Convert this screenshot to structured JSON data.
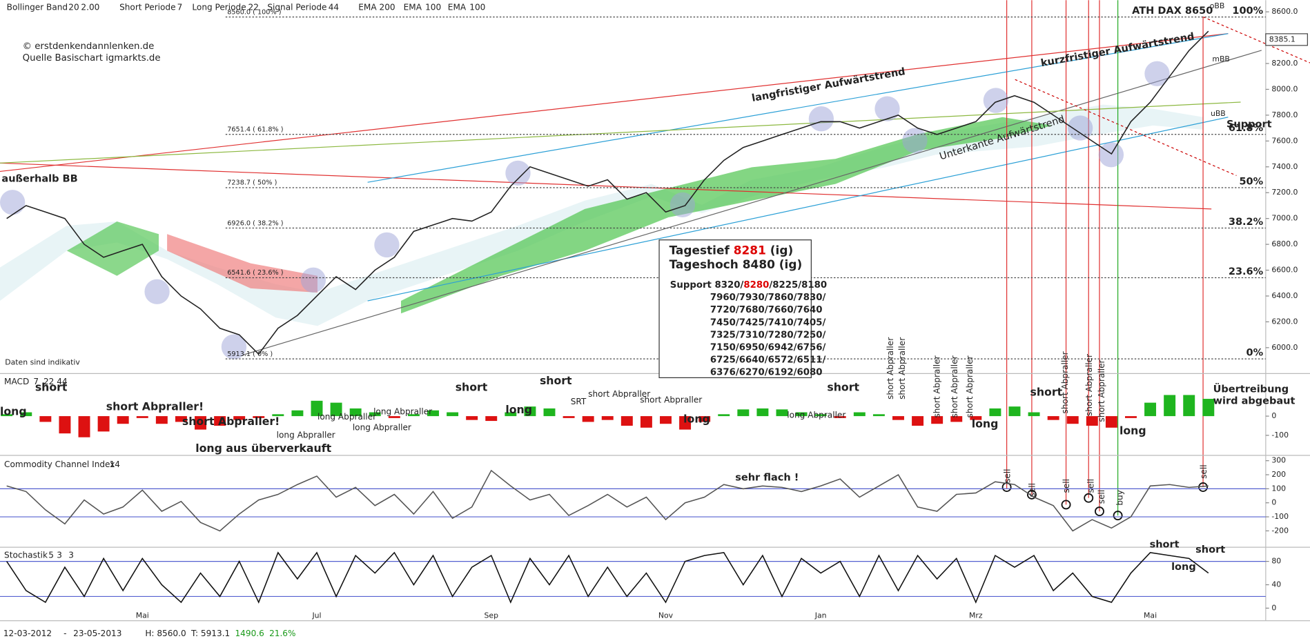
{
  "chart_data": [
    {
      "type": "line",
      "header": [
        "Bollinger Band",
        "20",
        "2.00",
        "Short Periode",
        "7",
        "Long Periode",
        "22",
        "Signal Periode",
        "44",
        "EMA",
        "200",
        "EMA",
        "100",
        "EMA",
        "100"
      ],
      "copyright": [
        "© erstdenkendannlenken.de",
        "Quelle Basischart igmarkts.de"
      ],
      "series": [
        {
          "color": "#222222",
          "values": [
            7000,
            7100,
            7050,
            7000,
            6800,
            6700,
            6750,
            6800,
            6550,
            6400,
            6300,
            6150,
            6100,
            5950,
            6150,
            6250,
            6400,
            6550,
            6450,
            6600,
            6700,
            6900,
            6950,
            7000,
            6980,
            7050,
            7250,
            7400,
            7350,
            7300,
            7250,
            7300,
            7150,
            7200,
            7050,
            7100,
            7300,
            7450,
            7550,
            7600,
            7650,
            7700,
            7750,
            7750,
            7700,
            7750,
            7800,
            7700,
            7650,
            7700,
            7750,
            7900,
            7950,
            7900,
            7800,
            7700,
            7600,
            7500,
            7750,
            7900,
            8100,
            8300,
            8450
          ]
        }
      ],
      "ylim": [
        5845,
        8690
      ],
      "yticks": [
        {
          "value": 8600,
          "label": "8600.0"
        },
        {
          "value": 8400,
          "label": "8400.0"
        },
        {
          "value": 8200,
          "label": "8200.0"
        },
        {
          "value": 8000,
          "label": "8000.0"
        },
        {
          "value": 7800,
          "label": "7800.0"
        },
        {
          "value": 7600,
          "label": "7600.0"
        },
        {
          "value": 7400,
          "label": "7400.0"
        },
        {
          "value": 7200,
          "label": "7200.0"
        },
        {
          "value": 7000,
          "label": "7000.0"
        },
        {
          "value": 6800,
          "label": "6800.0"
        },
        {
          "value": 6600,
          "label": "6600.0"
        },
        {
          "value": 6400,
          "label": "6400.0"
        },
        {
          "value": 6200,
          "label": "6200.0"
        },
        {
          "value": 6000,
          "label": "6000.0"
        }
      ],
      "last": 8385.1,
      "fib": [
        {
          "value": 8560,
          "label": "100%",
          "tag": "8560.0 ( 100% )"
        },
        {
          "value": 7651.4,
          "label": "61.8%",
          "tag": "7651.4 ( 61.8% )"
        },
        {
          "value": 7238.7,
          "label": "50%",
          "tag": "7238.7 ( 50% )"
        },
        {
          "value": 6926.0,
          "label": "38.2%",
          "tag": "6926.0 ( 38.2% )"
        },
        {
          "value": 6541.6,
          "label": "23.6%",
          "tag": "6541.6 ( 23.6% )"
        },
        {
          "value": 5913.1,
          "label": "0%",
          "tag": "5913.1 ( 0% )"
        }
      ],
      "annotations": [
        "außerhalb BB",
        "langfristiger Aufwärtstrend",
        "kurzfristiger Aufwärtstrend",
        "Unterkante Aufwärtstrend",
        "ATH DAX 8650",
        "oBB",
        "mBB",
        "uBB",
        "Support",
        "Daten sind indikativ"
      ],
      "info_box": {
        "line1": [
          "Tagestief",
          "8281",
          "(ig)"
        ],
        "line2": "Tageshoch 8480 (ig)",
        "support": [
          "Support 8320/",
          "8280",
          "/8225/8180"
        ],
        "rows": [
          "7960/7930/7860/7830/",
          "7720/7680/7660/7640",
          "7450/7425/7410/7405/",
          "7325/7310/7280/7250/",
          "7150/6950/6942/6756/",
          "6725/6640/6572/6511/",
          "6376/6270/6192/6080"
        ]
      }
    },
    {
      "type": "bar",
      "label": [
        "MACD",
        "7",
        "22",
        "44"
      ],
      "up_color": "#1fb51f",
      "down_color": "#dd1111",
      "values": [
        10,
        20,
        -30,
        -90,
        -110,
        -80,
        -40,
        -10,
        -40,
        -30,
        -70,
        -50,
        -20,
        -10,
        10,
        30,
        80,
        70,
        40,
        20,
        -10,
        10,
        30,
        20,
        -20,
        -25,
        20,
        50,
        40,
        -10,
        -30,
        -20,
        -50,
        -60,
        -40,
        -70,
        -30,
        10,
        35,
        40,
        35,
        20,
        10,
        -10,
        20,
        10,
        -20,
        -50,
        -40,
        -30,
        -20,
        40,
        50,
        20,
        -20,
        -40,
        -50,
        -60,
        -10,
        70,
        110,
        110,
        90
      ],
      "ylim": [
        -190,
        200
      ],
      "yticks": [
        0,
        -100
      ],
      "annotations": [
        "long",
        "short",
        "short Abpraller!",
        "short Abpraller!",
        "long aus überverkauft",
        "long Abpraller",
        "long Abpraller",
        "long Abpraller",
        "long Abpraller",
        "short",
        "long",
        "short",
        "SRT",
        "short Abpraller",
        "short Abpraller",
        "long",
        "long Abpraller",
        "short",
        "short Abpraller",
        "short Abpraller",
        "short Abpraller",
        "short Abpraller",
        "short Abpraller",
        "short Abpraller",
        "short Abpraller",
        "short Abpraller",
        "long",
        "short",
        "long",
        "Übertreibung",
        "wird abgebaut"
      ]
    },
    {
      "type": "line",
      "label": [
        "Commodity Channel Index",
        "14"
      ],
      "levels": [
        100,
        -100
      ],
      "series": [
        {
          "color": "#555555",
          "values": [
            120,
            80,
            -50,
            -150,
            20,
            -80,
            -30,
            90,
            -60,
            10,
            -140,
            -200,
            -80,
            20,
            60,
            130,
            190,
            40,
            110,
            -20,
            60,
            -80,
            80,
            -110,
            -30,
            230,
            120,
            20,
            60,
            -90,
            -20,
            60,
            -30,
            40,
            -120,
            0,
            40,
            130,
            100,
            120,
            110,
            80,
            120,
            170,
            40,
            120,
            200,
            -30,
            -60,
            60,
            70,
            150,
            130,
            40,
            -20,
            -200,
            -120,
            -180,
            -100,
            120,
            130,
            110,
            120
          ]
        }
      ],
      "ylim": [
        -290,
        320
      ],
      "yticks": [
        300,
        200,
        100,
        0,
        -100,
        -200
      ],
      "annotations": [
        "sehr flach !",
        "sell",
        "sell",
        "sell",
        "sell",
        "sell",
        "sell",
        "buy"
      ]
    },
    {
      "type": "line",
      "label": [
        "Stochastik",
        "5",
        "3",
        "3"
      ],
      "levels": [
        80,
        20
      ],
      "series": [
        {
          "color": "#111111",
          "values": [
            80,
            30,
            10,
            70,
            20,
            85,
            30,
            85,
            40,
            10,
            60,
            20,
            80,
            10,
            95,
            50,
            95,
            20,
            90,
            60,
            95,
            40,
            90,
            20,
            70,
            90,
            10,
            85,
            40,
            90,
            20,
            70,
            20,
            60,
            10,
            80,
            90,
            95,
            40,
            90,
            20,
            85,
            60,
            80,
            20,
            90,
            30,
            90,
            50,
            85,
            10,
            90,
            70,
            90,
            30,
            60,
            20,
            10,
            60,
            95,
            90,
            85,
            60
          ]
        }
      ],
      "ylim": [
        -17,
        97
      ],
      "yticks": [
        80,
        40,
        0
      ],
      "categories": [
        null,
        null,
        null,
        null,
        null,
        null,
        null,
        "Mai",
        null,
        null,
        null,
        null,
        null,
        null,
        null,
        null,
        "Jul",
        null,
        null,
        null,
        null,
        null,
        null,
        null,
        null,
        "Sep",
        null,
        null,
        null,
        null,
        null,
        null,
        null,
        null,
        "Nov",
        null,
        null,
        null,
        null,
        null,
        null,
        null,
        "Jan",
        null,
        null,
        null,
        null,
        null,
        null,
        null,
        "Mrz",
        null,
        null,
        null,
        null,
        null,
        null,
        null,
        null,
        "Mai",
        null,
        null,
        null
      ],
      "annotations": [
        "short",
        "long",
        "short"
      ]
    }
  ],
  "footer": {
    "start": "12-03-2012",
    "sep": "-",
    "end": "23-05-2013",
    "high": "H: 8560.0",
    "low": "T: 5913.1",
    "change": "1490.6",
    "change_pct": "21.6%"
  }
}
